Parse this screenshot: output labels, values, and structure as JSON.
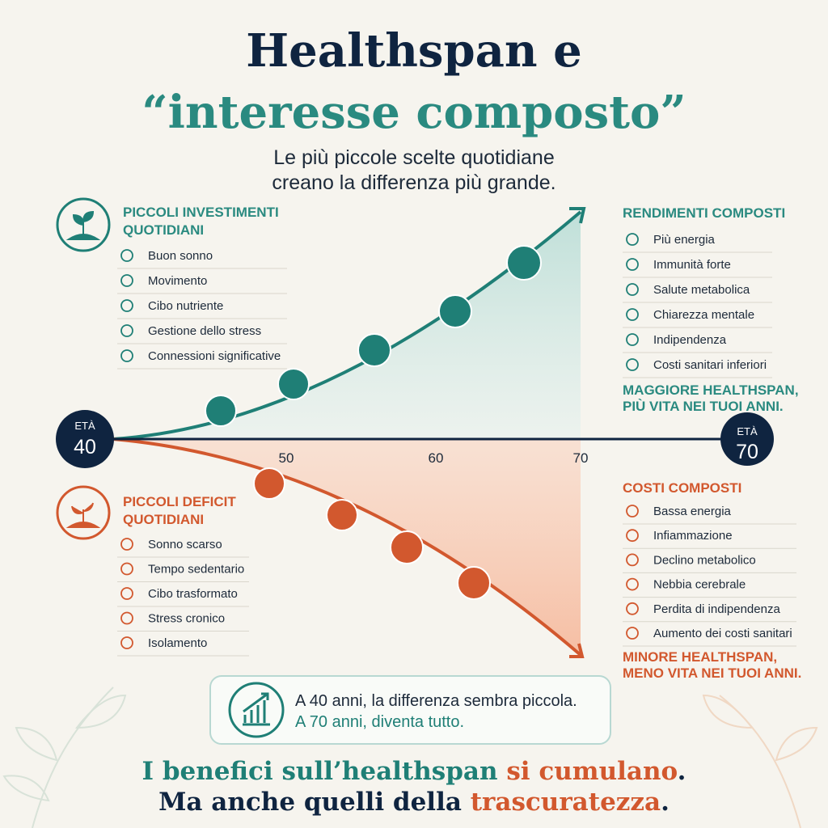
{
  "header": {
    "title_line1": "Healthspan e",
    "title_line2": "“interesse composto”",
    "subtitle_line1": "Le più piccole scelte quotidiane",
    "subtitle_line2": "creano la differenza più grande."
  },
  "investments": {
    "title_line1": "PICCOLI INVESTIMENTI",
    "title_line2": "QUOTIDIANI",
    "items": [
      "Buon sonno",
      "Movimento",
      "Cibo nutriente",
      "Gestione dello stress",
      "Connessioni significative"
    ]
  },
  "returns": {
    "title": "RENDIMENTI COMPOSTI",
    "items": [
      "Più energia",
      "Immunità forte",
      "Salute metabolica",
      "Chiarezza mentale",
      "Indipendenza",
      "Costi sanitari inferiori"
    ],
    "conclusion_line1": "MAGGIORE HEALTHSPAN,",
    "conclusion_line2": "PIÙ VITA NEI TUOI ANNI."
  },
  "deficits": {
    "title_line1": "PICCOLI DEFICIT",
    "title_line2": "QUOTIDIANI",
    "items": [
      "Sonno scarso",
      "Tempo sedentario",
      "Cibo trasformato",
      "Stress cronico",
      "Isolamento"
    ]
  },
  "costs": {
    "title": "COSTI COMPOSTI",
    "items": [
      "Bassa energia",
      "Infiammazione",
      "Declino metabolico",
      "Nebbia cerebrale",
      "Perdita di indipendenza",
      "Aumento dei costi sanitari"
    ],
    "conclusion_line1": "MINORE HEALTHSPAN,",
    "conclusion_line2": "MENO VITA NEI TUOI ANNI."
  },
  "axis": {
    "start_label": "ETÀ",
    "start_age": "40",
    "ticks": [
      "50",
      "60",
      "70"
    ],
    "end_label": "ETÀ",
    "end_age": "70"
  },
  "callout": {
    "line1": "A 40 anni, la differenza sembra piccola.",
    "line2": "A 70 anni, diventa tutto."
  },
  "footer": {
    "line1_parts": [
      "I benefici sull’healthspan ",
      "si cumulano",
      "."
    ],
    "line2_parts": [
      "Ma anche quelli della ",
      "trascuratezza",
      "."
    ]
  }
}
